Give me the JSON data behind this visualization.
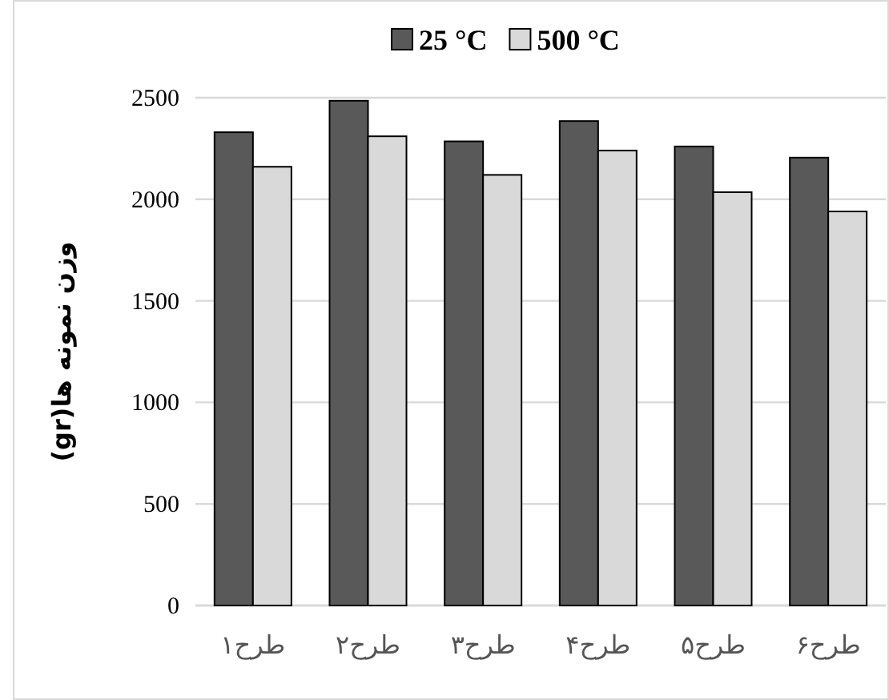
{
  "chart_data": {
    "type": "bar",
    "ylabel": "وزن نمونه ها(gr)",
    "categories": [
      "طرح۱",
      "طرح۲",
      "طرح۳",
      "طرح۴",
      "طرح۵",
      "طرح۶"
    ],
    "series": [
      {
        "name": "25 °C",
        "color": "#595959",
        "values": [
          2330,
          2485,
          2285,
          2385,
          2260,
          2205
        ]
      },
      {
        "name": "500 °C",
        "color": "#d9d9d9",
        "values": [
          2160,
          2310,
          2120,
          2240,
          2035,
          1940
        ]
      }
    ],
    "ylim": [
      0,
      2500
    ],
    "yticks": [
      0,
      500,
      1000,
      1500,
      2000,
      2500
    ],
    "grid": "y",
    "legend": "top"
  }
}
